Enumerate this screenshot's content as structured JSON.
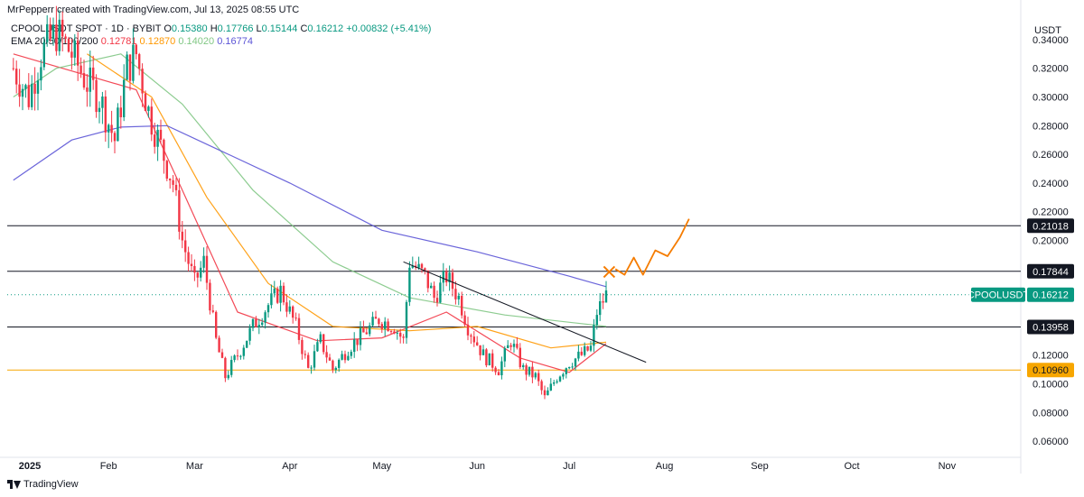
{
  "header": {
    "credit": "MrPepperr created with TradingView.com, Jul 13, 2025 08:55 UTC"
  },
  "legend": {
    "symbol": "CPOOLUSDT SPOT · 1D · BYBIT",
    "open_label": "O",
    "open": "0.15380",
    "high_label": "H",
    "high": "0.17766",
    "low_label": "L",
    "low": "0.15144",
    "close_label": "C",
    "close": "0.16212",
    "change": "+0.00832 (+5.41%)",
    "ema_title": "EMA 20/50/100/200",
    "ema_values": [
      "0.12781",
      "0.12870",
      "0.14020",
      "0.16774"
    ],
    "ema_colors": [
      "#f23645",
      "#ff9800",
      "#81c784",
      "#5b54d6"
    ]
  },
  "footer": {
    "brand": "TradingView"
  },
  "chart_data": {
    "type": "candlestick",
    "symbol": "CPOOLUSDT",
    "exchange": "BYBIT",
    "interval": "1D",
    "currency": "USDT",
    "ylim": [
      0.05,
      0.355
    ],
    "xlim": [
      "2024-12-30",
      "2025-11-25"
    ],
    "y_ticks": [
      "0.34000",
      "0.32000",
      "0.30000",
      "0.28000",
      "0.26000",
      "0.24000",
      "0.22000",
      "0.20000",
      "0.18000",
      "0.16000",
      "0.14000",
      "0.12000",
      "0.10000",
      "0.08000",
      "0.06000"
    ],
    "x_ticks": [
      {
        "label": "2025",
        "date": "2025-01-01"
      },
      {
        "label": "Feb",
        "date": "2025-02-01"
      },
      {
        "label": "Mar",
        "date": "2025-03-01"
      },
      {
        "label": "Apr",
        "date": "2025-04-01"
      },
      {
        "label": "May",
        "date": "2025-05-01"
      },
      {
        "label": "Jun",
        "date": "2025-06-01"
      },
      {
        "label": "Jul",
        "date": "2025-07-01"
      },
      {
        "label": "Aug",
        "date": "2025-08-01"
      },
      {
        "label": "Sep",
        "date": "2025-09-01"
      },
      {
        "label": "Oct",
        "date": "2025-10-01"
      },
      {
        "label": "Nov",
        "date": "2025-11-01"
      }
    ],
    "close_path": [
      [
        "2025-01-01",
        0.32
      ],
      [
        "2025-01-06",
        0.3
      ],
      [
        "2025-01-10",
        0.33
      ],
      [
        "2025-01-15",
        0.345
      ],
      [
        "2025-01-20",
        0.33
      ],
      [
        "2025-01-25",
        0.31
      ],
      [
        "2025-01-29",
        0.3
      ],
      [
        "2025-02-03",
        0.27
      ],
      [
        "2025-02-07",
        0.32
      ],
      [
        "2025-02-10",
        0.33
      ],
      [
        "2025-02-14",
        0.29
      ],
      [
        "2025-02-18",
        0.265
      ],
      [
        "2025-02-22",
        0.24
      ],
      [
        "2025-02-25",
        0.2
      ],
      [
        "2025-03-01",
        0.17
      ],
      [
        "2025-03-04",
        0.185
      ],
      [
        "2025-03-08",
        0.13
      ],
      [
        "2025-03-11",
        0.105
      ],
      [
        "2025-03-15",
        0.12
      ],
      [
        "2025-03-20",
        0.14
      ],
      [
        "2025-03-25",
        0.155
      ],
      [
        "2025-03-29",
        0.165
      ],
      [
        "2025-04-03",
        0.14
      ],
      [
        "2025-04-07",
        0.11
      ],
      [
        "2025-04-11",
        0.13
      ],
      [
        "2025-04-15",
        0.11
      ],
      [
        "2025-04-20",
        0.125
      ],
      [
        "2025-04-25",
        0.135
      ],
      [
        "2025-04-30",
        0.145
      ],
      [
        "2025-05-05",
        0.14
      ],
      [
        "2025-05-08",
        0.13
      ],
      [
        "2025-05-10",
        0.185
      ],
      [
        "2025-05-15",
        0.175
      ],
      [
        "2025-05-18",
        0.16
      ],
      [
        "2025-05-22",
        0.175
      ],
      [
        "2025-05-26",
        0.16
      ],
      [
        "2025-05-29",
        0.14
      ],
      [
        "2025-06-03",
        0.12
      ],
      [
        "2025-06-08",
        0.11
      ],
      [
        "2025-06-12",
        0.13
      ],
      [
        "2025-06-16",
        0.11
      ],
      [
        "2025-06-20",
        0.105
      ],
      [
        "2025-06-23",
        0.09
      ],
      [
        "2025-06-27",
        0.105
      ],
      [
        "2025-07-01",
        0.115
      ],
      [
        "2025-07-05",
        0.12
      ],
      [
        "2025-07-08",
        0.125
      ],
      [
        "2025-07-10",
        0.15
      ],
      [
        "2025-07-13",
        0.16212
      ]
    ],
    "ema_lines": [
      {
        "period": 20,
        "value": "0.12781",
        "color": "#f23645",
        "path": [
          [
            "2025-01-01",
            0.33
          ],
          [
            "2025-02-10",
            0.305
          ],
          [
            "2025-02-25",
            0.235
          ],
          [
            "2025-03-15",
            0.15
          ],
          [
            "2025-04-10",
            0.13
          ],
          [
            "2025-05-01",
            0.132
          ],
          [
            "2025-05-22",
            0.15
          ],
          [
            "2025-06-15",
            0.118
          ],
          [
            "2025-07-01",
            0.108
          ],
          [
            "2025-07-13",
            0.128
          ]
        ]
      },
      {
        "period": 50,
        "value": "0.12870",
        "color": "#ff9800",
        "path": [
          [
            "2025-01-25",
            0.33
          ],
          [
            "2025-02-15",
            0.3
          ],
          [
            "2025-03-05",
            0.23
          ],
          [
            "2025-03-25",
            0.17
          ],
          [
            "2025-04-15",
            0.14
          ],
          [
            "2025-05-10",
            0.137
          ],
          [
            "2025-06-01",
            0.14
          ],
          [
            "2025-06-25",
            0.125
          ],
          [
            "2025-07-13",
            0.129
          ]
        ]
      },
      {
        "period": 100,
        "value": "0.14020",
        "color": "#81c784",
        "path": [
          [
            "2025-01-01",
            0.3
          ],
          [
            "2025-01-15",
            0.32
          ],
          [
            "2025-02-05",
            0.33
          ],
          [
            "2025-02-25",
            0.295
          ],
          [
            "2025-03-20",
            0.235
          ],
          [
            "2025-04-15",
            0.185
          ],
          [
            "2025-05-10",
            0.16
          ],
          [
            "2025-06-10",
            0.148
          ],
          [
            "2025-07-13",
            0.14
          ]
        ]
      },
      {
        "period": 200,
        "value": "0.16774",
        "color": "#5b54d6",
        "path": [
          [
            "2025-01-01",
            0.242
          ],
          [
            "2025-01-20",
            0.27
          ],
          [
            "2025-02-05",
            0.279
          ],
          [
            "2025-02-20",
            0.28
          ],
          [
            "2025-03-10",
            0.262
          ],
          [
            "2025-04-01",
            0.24
          ],
          [
            "2025-05-01",
            0.207
          ],
          [
            "2025-06-01",
            0.192
          ],
          [
            "2025-07-01",
            0.175
          ],
          [
            "2025-07-13",
            0.16774
          ]
        ]
      }
    ],
    "horizontal_lines": [
      {
        "value": 0.21018,
        "label": "0.21018",
        "color": "#131722"
      },
      {
        "value": 0.17844,
        "label": "0.17844",
        "color": "#131722"
      },
      {
        "value": 0.13958,
        "label": "0.13958",
        "color": "#131722"
      },
      {
        "value": 0.1096,
        "label": "0.10960",
        "color": "#f7a600"
      }
    ],
    "last_price": {
      "value": 0.16212,
      "symbol": "CPOOLUSDT",
      "label": "0.16212",
      "color": "#089981"
    },
    "trendline": {
      "from": [
        "2025-05-08",
        0.185
      ],
      "to": [
        "2025-07-26",
        0.115
      ],
      "color": "#131722"
    },
    "projection": {
      "color": "#f57c00",
      "cross_at": [
        "2025-07-14",
        0.178
      ],
      "path": [
        [
          "2025-07-16",
          0.18
        ],
        [
          "2025-07-19",
          0.176
        ],
        [
          "2025-07-22",
          0.188
        ],
        [
          "2025-07-25",
          0.176
        ],
        [
          "2025-07-29",
          0.193
        ],
        [
          "2025-08-02",
          0.189
        ],
        [
          "2025-08-06",
          0.202
        ],
        [
          "2025-08-09",
          0.215
        ]
      ]
    },
    "legend_position": "top-left",
    "grid": false
  }
}
